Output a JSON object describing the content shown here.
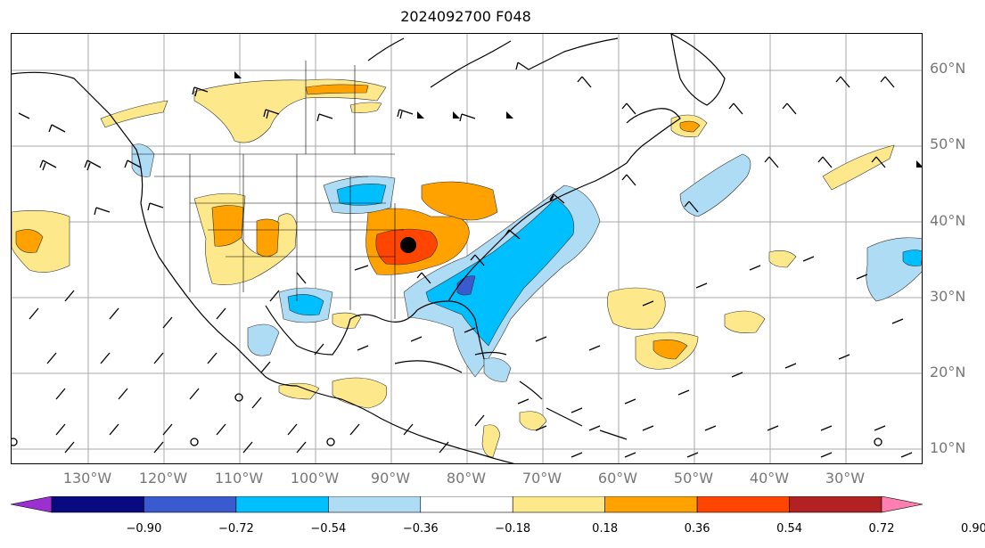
{
  "title": "2024092700 F048",
  "lat_labels": [
    "60°N",
    "50°N",
    "40°N",
    "30°N",
    "20°N",
    "10°N"
  ],
  "lon_labels": [
    "130°W",
    "120°W",
    "110°W",
    "100°W",
    "90°W",
    "80°W",
    "70°W",
    "60°W",
    "50°W",
    "40°W",
    "30°W"
  ],
  "colorbar": {
    "ticks": [
      "−0.90",
      "−0.72",
      "−0.54",
      "−0.36",
      "−0.18",
      "0.18",
      "0.36",
      "0.54",
      "0.72",
      "0.90"
    ],
    "colors": [
      "#9b30d0",
      "#0a0a80",
      "#3a5bd0",
      "#00bfff",
      "#aedcf5",
      "#ffffff",
      "#fde98c",
      "#ffa200",
      "#ff4500",
      "#b22222",
      "#ff80b0"
    ]
  },
  "marker": "storm-center-dot"
}
